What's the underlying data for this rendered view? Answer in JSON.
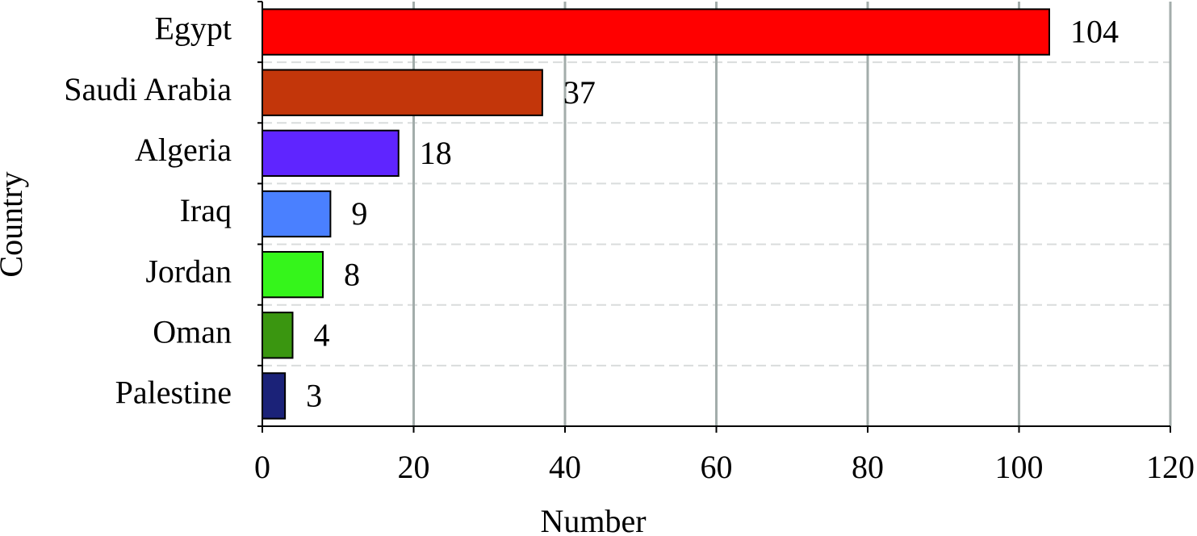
{
  "chart_data": {
    "type": "hbar",
    "x_label": "Number",
    "y_label": "Country",
    "categories": [
      "Egypt",
      "Saudi Arabia",
      "Algeria",
      "Iraq",
      "Jordan",
      "Oman",
      "Palestine"
    ],
    "values": [
      104,
      37,
      18,
      9,
      8,
      4,
      3
    ],
    "colors": [
      "#ff0000",
      "#c3360a",
      "#5f25ff",
      "#4a80ff",
      "#35f51b",
      "#3a9610",
      "#1b2278"
    ],
    "xlim": [
      0,
      120
    ],
    "xticks": [
      0,
      20,
      40,
      60,
      80,
      100,
      120
    ],
    "grid": true
  }
}
